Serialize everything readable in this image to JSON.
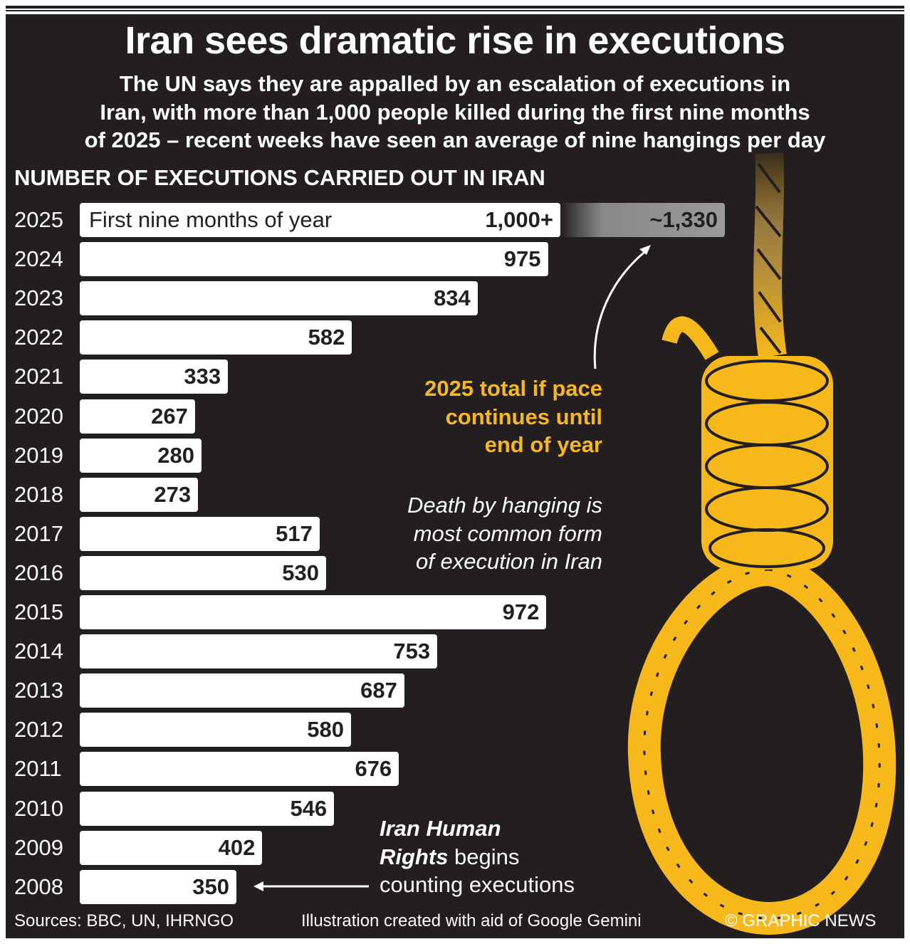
{
  "title": "Iran sees dramatic rise in executions",
  "subtitle_lines": [
    "The UN says they are appalled by an escalation of executions in",
    "Iran, with more than 1,000 people killed during the first nine months",
    "of 2025 – recent weeks have seen an average of nine hangings per day"
  ],
  "colors": {
    "background": "#231f20",
    "bar": "#ffffff",
    "accent": "#f6b81a",
    "projection": "#9a9a9a"
  },
  "chart_data": {
    "type": "bar",
    "orientation": "horizontal",
    "title": "NUMBER OF EXECUTIONS CARRIED OUT IN IRAN",
    "categories": [
      "2025",
      "2024",
      "2023",
      "2022",
      "2021",
      "2020",
      "2019",
      "2018",
      "2017",
      "2016",
      "2015",
      "2014",
      "2013",
      "2012",
      "2011",
      "2010",
      "2009",
      "2008"
    ],
    "values": [
      1000,
      975,
      834,
      582,
      333,
      267,
      280,
      273,
      517,
      530,
      972,
      753,
      687,
      580,
      676,
      546,
      402,
      350
    ],
    "value_labels": [
      "1,000+",
      "975",
      "834",
      "582",
      "333",
      "267",
      "280",
      "273",
      "517",
      "530",
      "972",
      "753",
      "687",
      "580",
      "676",
      "546",
      "402",
      "350"
    ],
    "bar_2025_label": "First nine months of year",
    "projection": {
      "category": "2025",
      "value": 1330,
      "label": "~1,330"
    }
  },
  "annotations": {
    "projection_note": [
      "2025 total if pace",
      "continues until",
      "end of year"
    ],
    "hanging_note": [
      "Death by hanging is",
      "most common form",
      "of execution in Iran"
    ],
    "ihr_note": {
      "bold1": "Iran Human",
      "bold2": "Rights",
      "rest2": " begins",
      "line3": "counting executions"
    }
  },
  "illustration": "noose-icon",
  "footer": {
    "sources": "Sources: BBC, UN, IHRNGO",
    "illustration_credit": "Illustration created with aid of Google Gemini",
    "copyright": "© GRAPHIC NEWS"
  }
}
